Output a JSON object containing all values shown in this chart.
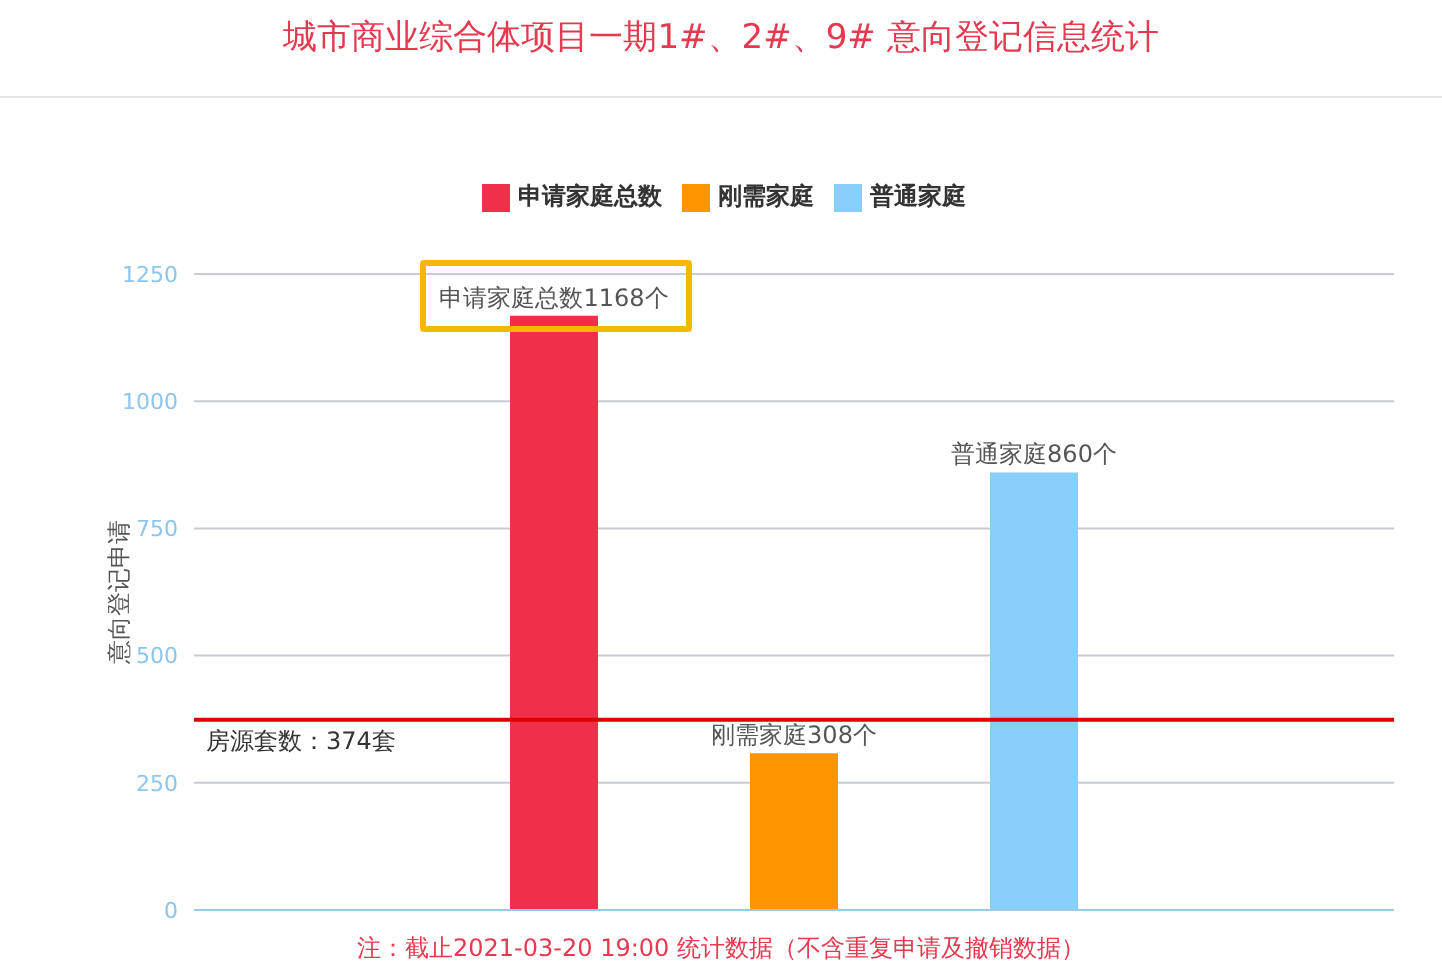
{
  "chart_data": {
    "type": "bar",
    "title": "城市商业综合体项目一期1#、2#、9# 意向登记信息统计",
    "ylabel": "意向登记申请",
    "categories": [
      null
    ],
    "series": [
      {
        "name": "申请家庭总数",
        "color": "#f0304a",
        "values": [
          1168
        ],
        "value_labels": [
          "申请家庭总数1168个"
        ]
      },
      {
        "name": "刚需家庭",
        "color": "#ff9500",
        "values": [
          308
        ],
        "value_labels": [
          "刚需家庭308个"
        ]
      },
      {
        "name": "普通家庭",
        "color": "#87cefa",
        "values": [
          860
        ],
        "value_labels": [
          "普通家庭860个"
        ]
      }
    ],
    "ylim": [
      0,
      1250
    ],
    "yticks": [
      0,
      250,
      500,
      750,
      1000,
      1250
    ],
    "grid": "y",
    "legend": "top",
    "ref_lines": [
      {
        "axis": "y",
        "value": 374,
        "label": "房源套数：374套",
        "color": "#e00000"
      }
    ],
    "annotations": [
      "注：截止2021-03-20 19:00 统计数据（不含重复申请及撤销数据）"
    ]
  }
}
